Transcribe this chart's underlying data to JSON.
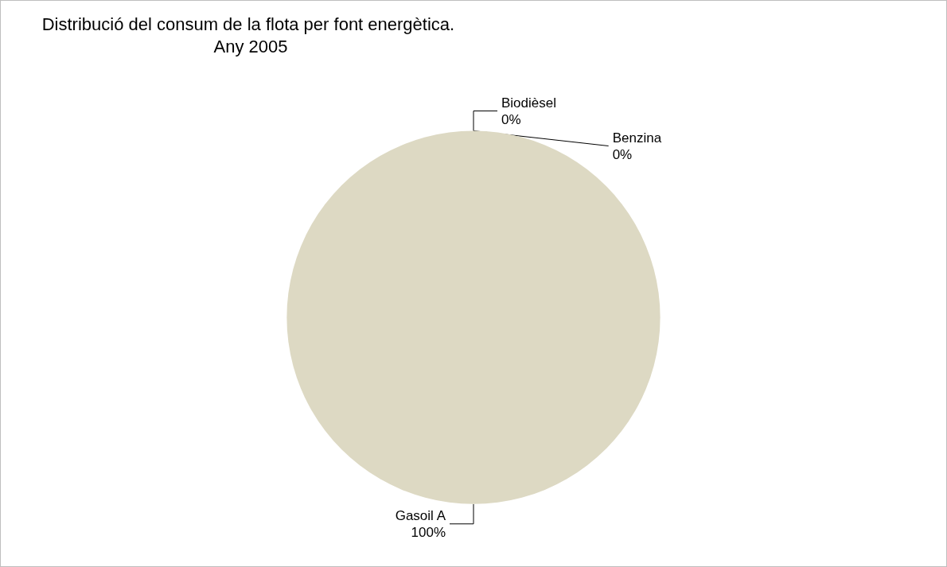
{
  "chart_data": {
    "type": "pie",
    "title": "Distribució del consum de la flota per font energètica. Any 2005",
    "categories": [
      "Gasoil A",
      "Biodièsel",
      "Benzina"
    ],
    "values": [
      100,
      0,
      0
    ],
    "value_labels": [
      "100%",
      "0%",
      "0%"
    ],
    "colors": [
      "#ddd9c3",
      "#4f81bd",
      "#c0504d"
    ],
    "legend": false
  }
}
